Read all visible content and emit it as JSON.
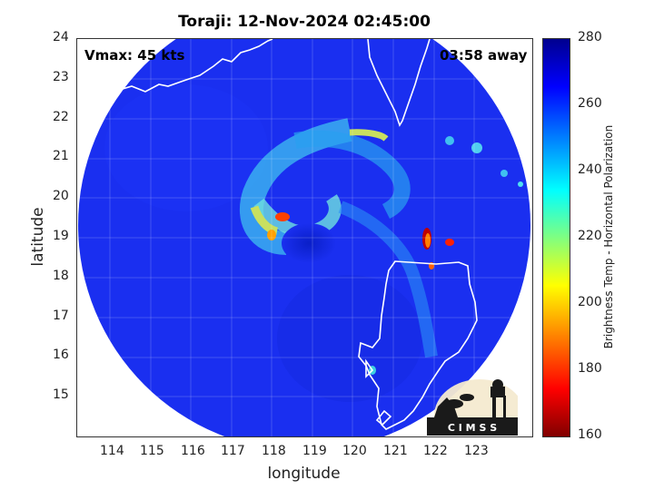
{
  "title": "Toraji: 12-Nov-2024 02:45:00",
  "vmax": "Vmax: 45 kts",
  "away": "03:58 away",
  "xlabel": "longitude",
  "ylabel": "latitude",
  "colorbar_label": "Brightness Temp - Horizontal Polarization",
  "colorbar_ticks": [
    "280",
    "260",
    "240",
    "220",
    "200",
    "180",
    "160"
  ],
  "x_ticks": [
    "114",
    "115",
    "116",
    "117",
    "118",
    "119",
    "120",
    "121",
    "122",
    "123"
  ],
  "y_ticks": [
    "24",
    "23",
    "22",
    "21",
    "20",
    "19",
    "18",
    "17",
    "16",
    "15"
  ],
  "logo_text": "C I M S S",
  "colors": {
    "scan_background": "#1a2ff0",
    "coastline": "#ffffff",
    "colorbar_top": "#00008f",
    "colorbar_bottom": "#800000"
  }
}
